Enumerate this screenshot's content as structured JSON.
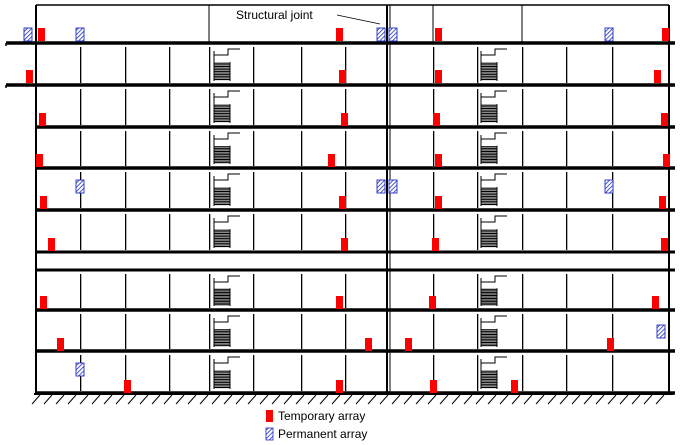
{
  "annotation": {
    "structural_joint_label": "Structural joint"
  },
  "legend": {
    "temporary_label": "Temporary array",
    "permanent_label": "Permanent array"
  },
  "colors": {
    "temporary": "#ff0000",
    "permanent": "#1f2dbf",
    "line": "#000000"
  },
  "diagram": {
    "floors_above_ground": 8,
    "temporary_array_count": 41,
    "permanent_array_count": 11
  }
}
